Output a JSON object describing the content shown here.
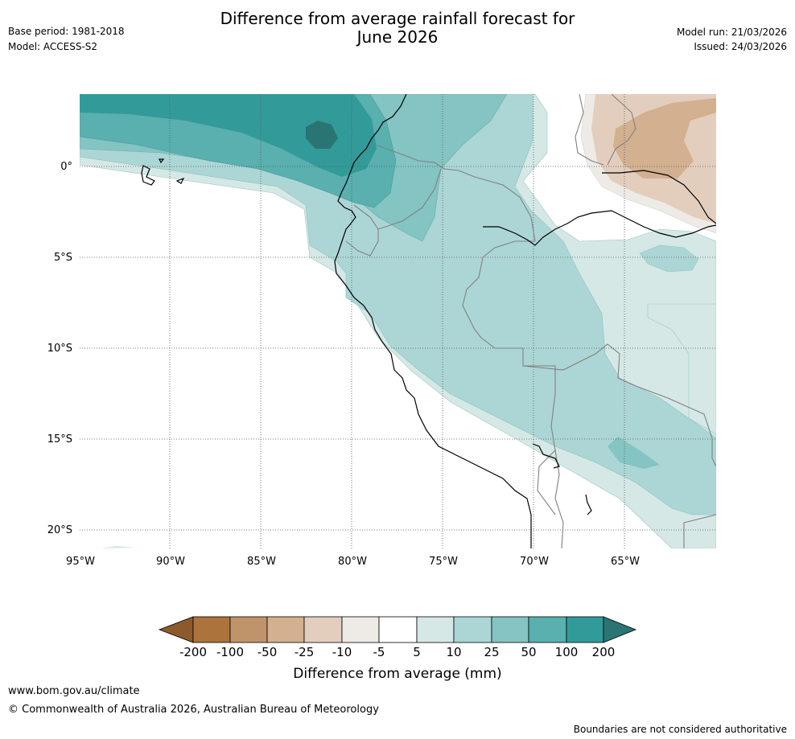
{
  "header": {
    "title_line1": "Difference from average rainfall forecast for",
    "title_line2": "June 2026",
    "base_period": "Base period: 1981-2018",
    "model": "Model: ACCESS-S2",
    "model_run": "Model run: 21/03/2026",
    "issued": "Issued: 24/03/2026"
  },
  "map": {
    "lat_labels": [
      "0°",
      "5°S",
      "10°S",
      "15°S",
      "20°S"
    ],
    "lon_labels": [
      "95°W",
      "90°W",
      "85°W",
      "80°W",
      "75°W",
      "70°W",
      "65°W"
    ],
    "colors": {
      "dry_extreme": "#8c5a2b",
      "dry_200": "#ad733c",
      "dry_100": "#c0946a",
      "dry_50": "#d2b090",
      "dry_25": "#e3cebd",
      "dry_10": "#eeebe7",
      "neutral": "#ffffff",
      "wet_5": "#d5e8e6",
      "wet_10": "#acd6d5",
      "wet_25": "#84c4c2",
      "wet_50": "#5aafaf",
      "wet_100": "#329b99",
      "wet_200": "#2a7474",
      "coast": "#000000",
      "border": "#808080"
    }
  },
  "legend": {
    "ticks": [
      "-200",
      "-100",
      "-50",
      "-25",
      "-10",
      "-5",
      "5",
      "10",
      "25",
      "50",
      "100",
      "200"
    ],
    "title": "Difference from average (mm)"
  },
  "footer": {
    "url": "www.bom.gov.au/climate",
    "copyright": "© Commonwealth of Australia 2026, Australian Bureau of Meteorology",
    "disclaimer": "Boundaries are not considered authoritative"
  }
}
